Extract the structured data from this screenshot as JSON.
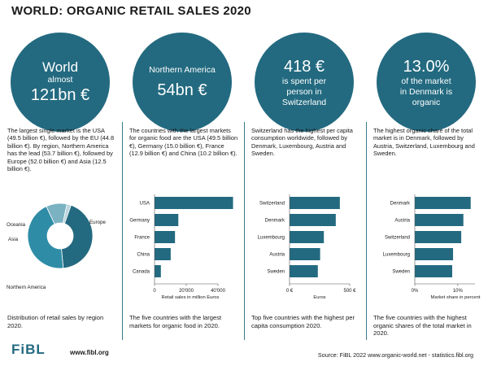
{
  "title": "WORLD: ORGANIC RETAIL SALES  2020",
  "colors": {
    "accent": "#236a80",
    "pie": [
      "#236a80",
      "#2f8ca7",
      "#7ab2c2",
      "#b9d4dc"
    ]
  },
  "panels": [
    {
      "circle_lines": [
        "World",
        "almost",
        "121bn €"
      ],
      "description": "The largest single market is the USA (49.5 billion €), followed by the EU (44.8 billion €). By region, Northern America has the lead (53.7 billion €), followed by Europe (52.0 billion €) and Asia (12.5 billion €).",
      "caption": "Distribution of retail sales by region 2020."
    },
    {
      "circle_lines": [
        "Northern America",
        "54bn €"
      ],
      "description": "The countries with the largest markets for organic food are the USA (49.5 billion €), Germany (15.0 billion €), France (12.9 billion €) and China (10.2 billion €).",
      "caption": "The five countries with the largest markets for organic food in 2020."
    },
    {
      "circle_lines": [
        "418 €",
        "is spent per",
        "person in",
        "Switzerland"
      ],
      "description": "Switzerland has the highest per capita consumption worldwide, followed by Denmark, Luxembourg, Austria and Sweden.",
      "caption": "Top five countries with the highest per capita consumption 2020."
    },
    {
      "circle_lines": [
        "13.0%",
        "of the market",
        "in Denmark is",
        "organic"
      ],
      "description": "The highest organic share of the total market is in Denmark, followed by Austria, Switzerland, Luxembourg and Sweden.",
      "caption": "The five countries with the highest organic shares of the total market in 2020."
    }
  ],
  "chart_data": [
    {
      "type": "pie",
      "title": "Distribution of retail sales by region 2020",
      "categories": [
        "Europe",
        "Northern America",
        "Asia",
        "Oceania"
      ],
      "values": [
        52.0,
        53.7,
        12.5,
        2.5
      ]
    },
    {
      "type": "bar",
      "orientation": "horizontal",
      "categories": [
        "USA",
        "Germany",
        "France",
        "China",
        "Canada"
      ],
      "values": [
        49.5,
        15.0,
        12.9,
        10.2,
        4.0
      ],
      "xlim": [
        0,
        40000
      ],
      "xticks": [
        0,
        20000,
        40000
      ],
      "xtick_labels": [
        "0",
        "20'000",
        "40'000"
      ],
      "xlabel": "Retail sales in million Euros"
    },
    {
      "type": "bar",
      "orientation": "horizontal",
      "categories": [
        "Switzerland",
        "Denmark",
        "Luxembourg",
        "Austria",
        "Sweden"
      ],
      "values": [
        418,
        384,
        285,
        254,
        235
      ],
      "xlim": [
        0,
        500
      ],
      "xticks": [
        0,
        500
      ],
      "xtick_labels": [
        "0 €",
        "500 €"
      ],
      "xlabel": "Euros"
    },
    {
      "type": "bar",
      "orientation": "horizontal",
      "categories": [
        "Denmark",
        "Austria",
        "Switzerland",
        "Luxembourg",
        "Sweden"
      ],
      "values": [
        13.0,
        11.3,
        10.8,
        8.9,
        8.7
      ],
      "xlim": [
        0,
        14
      ],
      "xticks": [
        0,
        10
      ],
      "xtick_labels": [
        "0%",
        "10%"
      ],
      "xlabel": "Market share in percent"
    }
  ],
  "footer": {
    "logo": "FiBL",
    "url": "www.fibl.org",
    "source": "Source: FiBL 2022 www.organic-world.net - statistics.fibl.org"
  }
}
